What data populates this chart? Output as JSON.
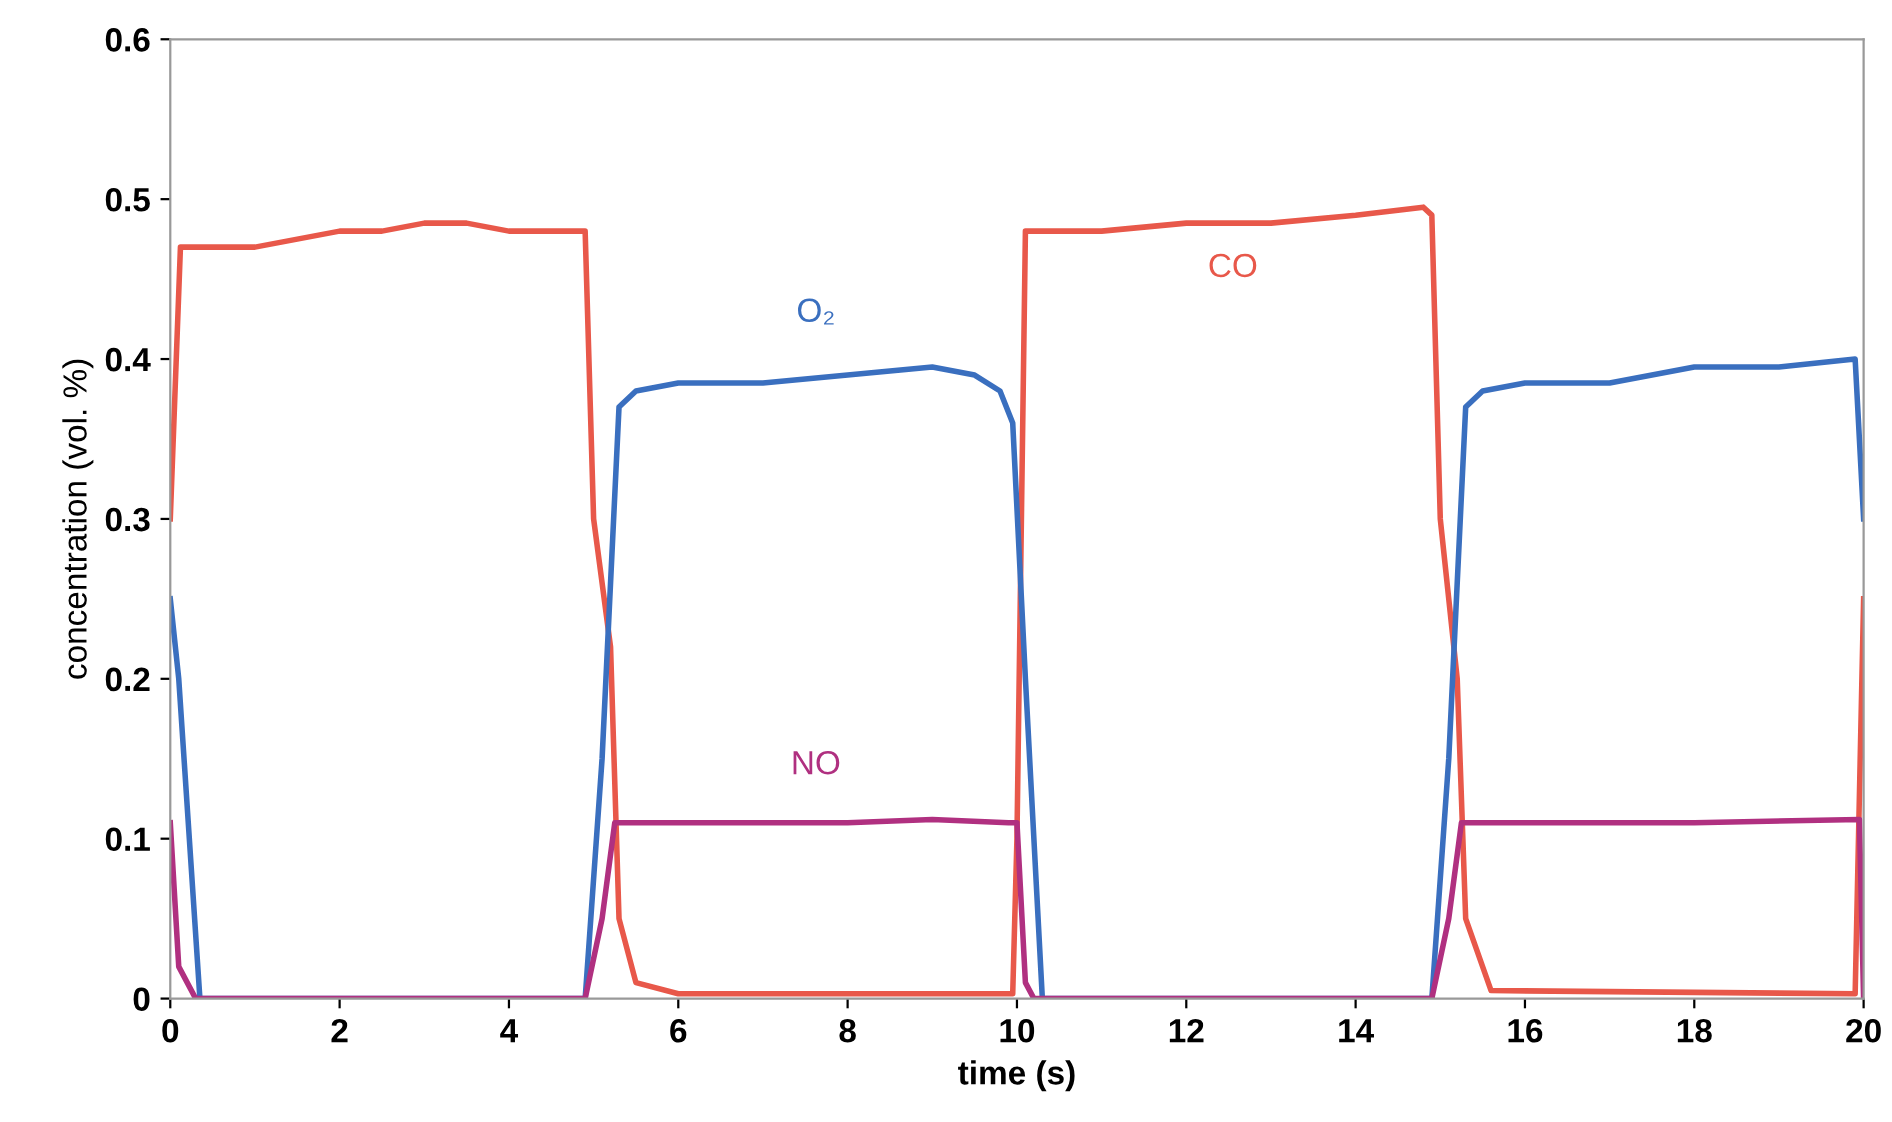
{
  "chart_data": {
    "type": "line",
    "xlabel": "time (s)",
    "ylabel": "concentration (vol. %)",
    "xlim": [
      0,
      20
    ],
    "ylim": [
      0,
      0.6
    ],
    "xticks": [
      0,
      2,
      4,
      6,
      8,
      10,
      12,
      14,
      16,
      18,
      20
    ],
    "yticks": [
      0,
      0.1,
      0.2,
      0.3,
      0.4,
      0.5,
      0.6
    ],
    "grid": false,
    "legend": false,
    "marker": "none",
    "line_style": "solid",
    "series": [
      {
        "name": "CO",
        "color": "#e8584a",
        "x": [
          0,
          0.12,
          0.5,
          1,
          1.5,
          2,
          2.5,
          3,
          3.5,
          4,
          4.5,
          4.9,
          5.0,
          5.2,
          5.3,
          5.5,
          6,
          9.95,
          10.0,
          10.1,
          11,
          12,
          13,
          14,
          14.8,
          14.9,
          15.0,
          15.2,
          15.3,
          15.6,
          19.9,
          20
        ],
        "values": [
          0.3,
          0.47,
          0.47,
          0.47,
          0.475,
          0.48,
          0.48,
          0.485,
          0.485,
          0.48,
          0.48,
          0.48,
          0.3,
          0.22,
          0.05,
          0.01,
          0.003,
          0.003,
          0.1,
          0.48,
          0.48,
          0.485,
          0.485,
          0.49,
          0.495,
          0.49,
          0.3,
          0.2,
          0.05,
          0.005,
          0.003,
          0.25
        ]
      },
      {
        "name": "O₂",
        "color": "#3a6fbf",
        "x": [
          0,
          0.1,
          0.35,
          4.9,
          5.1,
          5.3,
          5.5,
          6,
          7,
          8,
          9,
          9.5,
          9.8,
          9.95,
          10.1,
          10.3,
          14.9,
          15.1,
          15.3,
          15.5,
          16,
          17,
          18,
          19,
          19.9,
          20
        ],
        "values": [
          0.25,
          0.2,
          0.0,
          0.0,
          0.15,
          0.37,
          0.38,
          0.385,
          0.385,
          0.39,
          0.395,
          0.39,
          0.38,
          0.36,
          0.2,
          0.0,
          0.0,
          0.15,
          0.37,
          0.38,
          0.385,
          0.385,
          0.395,
          0.395,
          0.4,
          0.3
        ]
      },
      {
        "name": "NO",
        "color": "#b03080",
        "x": [
          0,
          0.1,
          0.3,
          4.9,
          5.1,
          5.25,
          6,
          7,
          8,
          9,
          9.9,
          10.0,
          10.1,
          10.2,
          14.9,
          15.1,
          15.25,
          16,
          18,
          19.95,
          20
        ],
        "values": [
          0.11,
          0.02,
          0.0,
          0.0,
          0.05,
          0.11,
          0.11,
          0.11,
          0.11,
          0.112,
          0.11,
          0.11,
          0.01,
          0.0,
          0.0,
          0.05,
          0.11,
          0.11,
          0.11,
          0.112,
          0.0
        ]
      }
    ]
  }
}
